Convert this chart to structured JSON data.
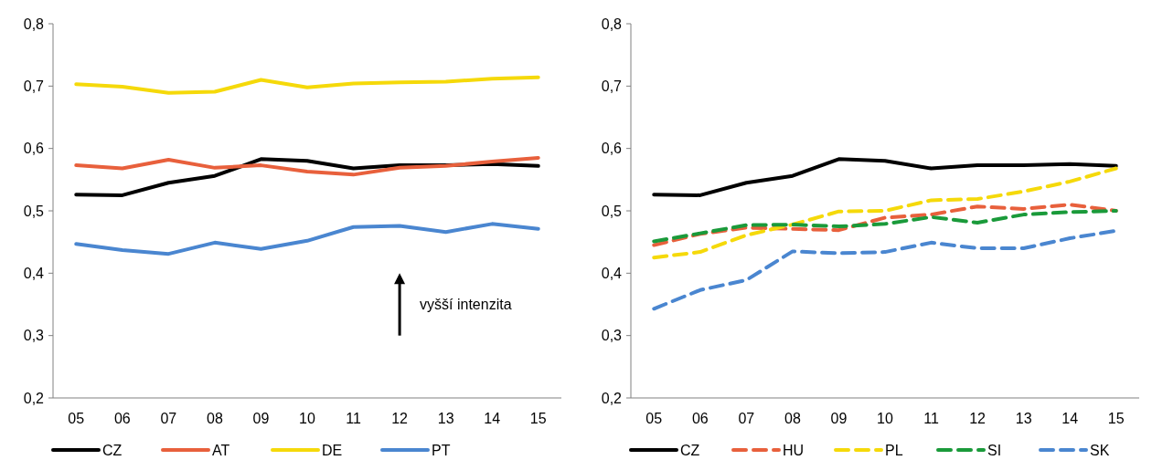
{
  "chart_data": [
    {
      "type": "line",
      "categories": [
        "05",
        "06",
        "07",
        "08",
        "09",
        "10",
        "11",
        "12",
        "13",
        "14",
        "15"
      ],
      "ylim": [
        0.2,
        0.8
      ],
      "yticks": [
        {
          "value": 0.2,
          "label": "0,2"
        },
        {
          "value": 0.3,
          "label": "0,3"
        },
        {
          "value": 0.4,
          "label": "0,4"
        },
        {
          "value": 0.5,
          "label": "0,5"
        },
        {
          "value": 0.6,
          "label": "0,6"
        },
        {
          "value": 0.7,
          "label": "0,7"
        },
        {
          "value": 0.8,
          "label": "0,8"
        }
      ],
      "grid": false,
      "legend": "bottom",
      "marker": "none",
      "annotations": [
        "vyšší intenzita"
      ],
      "series": [
        {
          "name": "CZ",
          "color": "#000000",
          "line_style": "solid",
          "values": [
            0.526,
            0.525,
            0.545,
            0.556,
            0.583,
            0.58,
            0.568,
            0.573,
            0.573,
            0.575,
            0.572
          ]
        },
        {
          "name": "AT",
          "color": "#e8603c",
          "line_style": "solid",
          "values": [
            0.573,
            0.568,
            0.582,
            0.569,
            0.573,
            0.563,
            0.558,
            0.569,
            0.572,
            0.579,
            0.585
          ]
        },
        {
          "name": "DE",
          "color": "#f5d90a",
          "line_style": "solid",
          "values": [
            0.703,
            0.699,
            0.689,
            0.691,
            0.71,
            0.698,
            0.704,
            0.706,
            0.707,
            0.712,
            0.714
          ]
        },
        {
          "name": "PT",
          "color": "#4a86d0",
          "line_style": "solid",
          "values": [
            0.447,
            0.437,
            0.431,
            0.449,
            0.439,
            0.452,
            0.474,
            0.476,
            0.466,
            0.479,
            0.471
          ]
        }
      ]
    },
    {
      "type": "line",
      "categories": [
        "05",
        "06",
        "07",
        "08",
        "09",
        "10",
        "11",
        "12",
        "13",
        "14",
        "15"
      ],
      "ylim": [
        0.2,
        0.8
      ],
      "yticks": [
        {
          "value": 0.2,
          "label": "0,2"
        },
        {
          "value": 0.3,
          "label": "0,3"
        },
        {
          "value": 0.4,
          "label": "0,4"
        },
        {
          "value": 0.5,
          "label": "0,5"
        },
        {
          "value": 0.6,
          "label": "0,6"
        },
        {
          "value": 0.7,
          "label": "0,7"
        },
        {
          "value": 0.8,
          "label": "0,8"
        }
      ],
      "grid": false,
      "legend": "bottom",
      "marker": "none",
      "series": [
        {
          "name": "CZ",
          "color": "#000000",
          "line_style": "solid",
          "values": [
            0.526,
            0.525,
            0.545,
            0.556,
            0.583,
            0.58,
            0.568,
            0.573,
            0.573,
            0.575,
            0.572
          ]
        },
        {
          "name": "HU",
          "color": "#e8603c",
          "line_style": "dashed",
          "values": [
            0.445,
            0.463,
            0.473,
            0.471,
            0.469,
            0.489,
            0.494,
            0.507,
            0.503,
            0.51,
            0.5
          ]
        },
        {
          "name": "PL",
          "color": "#f5d90a",
          "line_style": "dashed",
          "values": [
            0.425,
            0.434,
            0.461,
            0.478,
            0.499,
            0.5,
            0.517,
            0.519,
            0.531,
            0.547,
            0.568
          ]
        },
        {
          "name": "SI",
          "color": "#1a9a3a",
          "line_style": "dashed",
          "values": [
            0.451,
            0.464,
            0.477,
            0.478,
            0.475,
            0.479,
            0.49,
            0.481,
            0.494,
            0.498,
            0.5
          ]
        },
        {
          "name": "SK",
          "color": "#4a86d0",
          "line_style": "dashed",
          "values": [
            0.343,
            0.373,
            0.389,
            0.435,
            0.432,
            0.434,
            0.449,
            0.44,
            0.44,
            0.456,
            0.468
          ]
        }
      ]
    }
  ]
}
